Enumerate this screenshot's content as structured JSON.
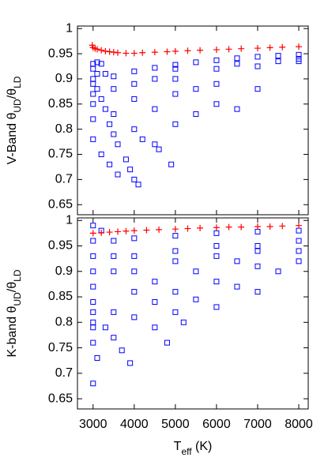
{
  "chart_data": [
    {
      "type": "scatter",
      "ylabel": [
        "V-Band θ",
        "UD",
        "/θ",
        "LD"
      ],
      "xlim": [
        2620,
        8230
      ],
      "ylim": [
        0.63,
        1.005
      ],
      "xticks": [
        3000,
        4000,
        5000,
        6000,
        7000,
        8000
      ],
      "xtick_labels": false,
      "yticks": [
        0.65,
        0.7,
        0.75,
        0.8,
        0.85,
        0.9,
        0.95,
        1
      ],
      "series": [
        {
          "color": "#0000ff",
          "marker": "square",
          "x": [
            3000,
            3100,
            3200,
            3300,
            3500,
            4000,
            4500,
            5000,
            5500,
            6000,
            6500,
            7000,
            7500,
            8000,
            3000,
            3000,
            3000,
            3000,
            3000,
            3100,
            3200,
            3300,
            3400,
            3500,
            3600,
            3800,
            3900,
            4000,
            4100,
            3500,
            4000,
            4500,
            4900,
            4000,
            4500,
            5000,
            5500,
            4000,
            5000,
            6000,
            6500,
            5000,
            6000,
            7000,
            5000,
            6000,
            7000,
            8000,
            8000,
            7500,
            6500,
            3200,
            3400,
            3600,
            4500,
            5500,
            3500,
            4200,
            4600,
            3000,
            3000,
            3100
          ],
          "y": [
            0.93,
            0.933,
            0.93,
            0.91,
            0.905,
            0.915,
            0.922,
            0.928,
            0.933,
            0.937,
            0.941,
            0.944,
            0.946,
            0.948,
            0.9,
            0.87,
            0.85,
            0.82,
            0.78,
            0.88,
            0.86,
            0.84,
            0.81,
            0.79,
            0.77,
            0.74,
            0.72,
            0.7,
            0.69,
            0.83,
            0.8,
            0.77,
            0.73,
            0.86,
            0.84,
            0.81,
            0.83,
            0.89,
            0.87,
            0.85,
            0.84,
            0.9,
            0.89,
            0.88,
            0.92,
            0.92,
            0.925,
            0.935,
            0.94,
            0.935,
            0.93,
            0.75,
            0.73,
            0.71,
            0.9,
            0.88,
            0.88,
            0.78,
            0.76,
            0.92,
            0.89,
            0.91
          ]
        },
        {
          "color": "#ff0000",
          "marker": "plus",
          "x": [
            2980,
            3000,
            3050,
            3100,
            3200,
            3300,
            3400,
            3500,
            3600,
            3800,
            4000,
            4200,
            4500,
            4800,
            5000,
            5300,
            5600,
            6000,
            6300,
            6600,
            7000,
            7300,
            7600,
            8000
          ],
          "y": [
            0.967,
            0.962,
            0.96,
            0.959,
            0.957,
            0.955,
            0.954,
            0.953,
            0.952,
            0.951,
            0.951,
            0.952,
            0.953,
            0.954,
            0.955,
            0.956,
            0.957,
            0.958,
            0.959,
            0.96,
            0.961,
            0.962,
            0.963,
            0.964
          ]
        }
      ]
    },
    {
      "type": "scatter",
      "ylabel": [
        "K-band θ",
        "UD",
        "/θ",
        "LD"
      ],
      "xlabel": [
        "T",
        "eff",
        " (K)"
      ],
      "xlim": [
        2620,
        8230
      ],
      "ylim": [
        0.63,
        1.005
      ],
      "xticks": [
        3000,
        4000,
        5000,
        6000,
        7000,
        8000
      ],
      "xtick_labels": true,
      "yticks": [
        0.65,
        0.7,
        0.75,
        0.8,
        0.85,
        0.9,
        0.95,
        1
      ],
      "series": [
        {
          "color": "#0000ff",
          "marker": "square",
          "x": [
            3000,
            3000,
            3000,
            3100,
            3300,
            3500,
            3700,
            3900,
            3500,
            4000,
            4500,
            4800,
            4000,
            4500,
            5000,
            5200,
            4500,
            5000,
            5500,
            6000,
            5500,
            6000,
            6500,
            7000,
            6500,
            7000,
            7500,
            8000,
            3000,
            3500,
            4000,
            5000,
            6000,
            7000,
            8000,
            3000,
            3000,
            3000,
            3000,
            3500,
            3500,
            4000,
            4000,
            5000,
            5000,
            6000,
            6000,
            7000,
            7000,
            8000,
            8000,
            3000,
            3200,
            3000,
            3000
          ],
          "y": [
            0.68,
            0.79,
            0.8,
            0.73,
            0.79,
            0.77,
            0.745,
            0.72,
            0.82,
            0.81,
            0.79,
            0.76,
            0.86,
            0.84,
            0.82,
            0.8,
            0.88,
            0.86,
            0.845,
            0.83,
            0.9,
            0.88,
            0.87,
            0.86,
            0.92,
            0.91,
            0.9,
            0.92,
            0.96,
            0.96,
            0.965,
            0.97,
            0.975,
            0.978,
            0.98,
            0.93,
            0.9,
            0.87,
            0.84,
            0.93,
            0.9,
            0.93,
            0.9,
            0.94,
            0.92,
            0.95,
            0.93,
            0.95,
            0.94,
            0.96,
            0.94,
            0.99,
            0.98,
            0.76,
            0.82
          ]
        },
        {
          "color": "#ff0000",
          "marker": "plus",
          "x": [
            3000,
            3200,
            3400,
            3600,
            3800,
            4000,
            4300,
            4600,
            5000,
            5300,
            5600,
            6000,
            6300,
            6600,
            7000,
            7300,
            7600,
            8000
          ],
          "y": [
            0.975,
            0.976,
            0.977,
            0.978,
            0.979,
            0.98,
            0.981,
            0.982,
            0.983,
            0.984,
            0.985,
            0.986,
            0.987,
            0.987,
            0.988,
            0.988,
            0.989,
            0.99
          ]
        }
      ]
    }
  ]
}
